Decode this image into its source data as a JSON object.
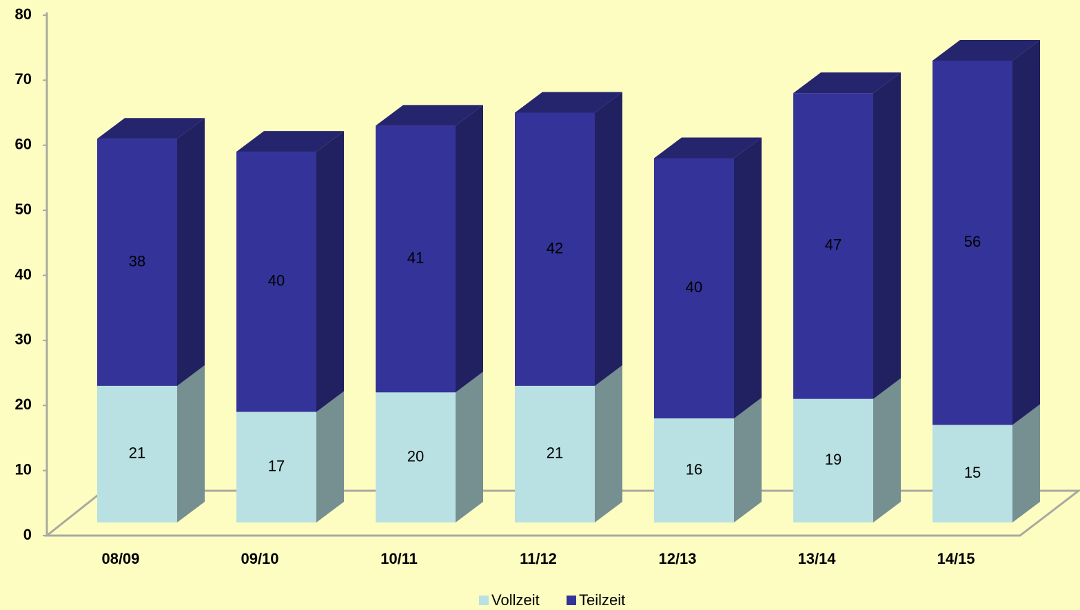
{
  "chart_data": {
    "type": "bar",
    "stacked": true,
    "three_d": true,
    "categories": [
      "08/09",
      "09/10",
      "10/11",
      "11/12",
      "12/13",
      "13/14",
      "14/15"
    ],
    "series": [
      {
        "name": "Vollzeit",
        "color": "#b9e0e3",
        "values": [
          21,
          17,
          20,
          21,
          16,
          19,
          15
        ]
      },
      {
        "name": "Teilzeit",
        "color": "#333399",
        "values": [
          38,
          40,
          41,
          42,
          40,
          47,
          56
        ]
      }
    ],
    "ylim": [
      0,
      80
    ],
    "yticks": [
      0,
      10,
      20,
      30,
      40,
      50,
      60,
      70,
      80
    ],
    "grid": false,
    "legend": "bottom"
  }
}
